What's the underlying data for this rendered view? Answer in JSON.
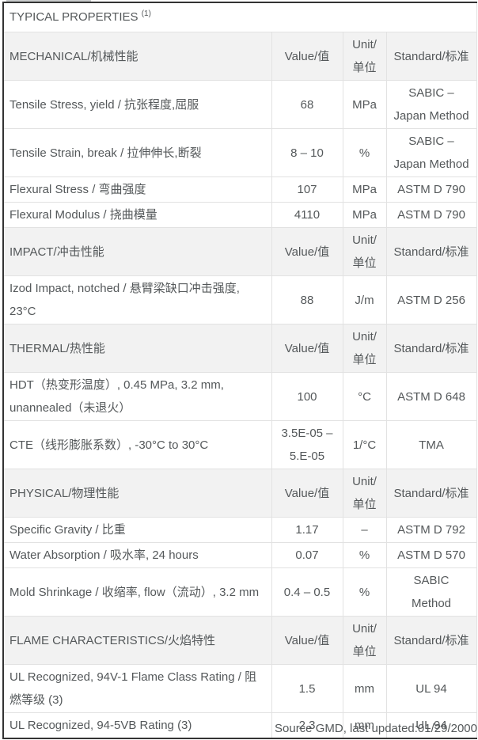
{
  "colors": {
    "text": "#54585a",
    "dark_border": "#333333",
    "grid_line": "#e2e2e2",
    "section_header_bg": "#f2f2f2",
    "top_strip": "#c9cbcc"
  },
  "table": {
    "title": "TYPICAL PROPERTIES",
    "title_superscript": "(1)",
    "columns": [
      "Value/值",
      "Unit/单位",
      "Standard/标准"
    ],
    "sections": [
      {
        "label": "MECHANICAL/机械性能",
        "rows": [
          {
            "property": "Tensile Stress, yield / 抗张程度,屈服",
            "value": "68",
            "unit": "MPa",
            "standard": "SABIC – Japan Method"
          },
          {
            "property": "Tensile Strain, break / 拉伸伸长,断裂",
            "value": "8 – 10",
            "unit": "%",
            "standard": "SABIC – Japan Method"
          },
          {
            "property": "Flexural Stress / 弯曲强度",
            "value": "107",
            "unit": "MPa",
            "standard": "ASTM D 790"
          },
          {
            "property": "Flexural Modulus / 挠曲模量",
            "value": "4110",
            "unit": "MPa",
            "standard": "ASTM D 790"
          }
        ]
      },
      {
        "label": "IMPACT/冲击性能",
        "rows": [
          {
            "property": "Izod Impact, notched / 悬臂梁缺口冲击强度, 23°C",
            "value": "88",
            "unit": "J/m",
            "standard": "ASTM D 256"
          }
        ]
      },
      {
        "label": "THERMAL/热性能",
        "rows": [
          {
            "property": "HDT（热变形温度）, 0.45 MPa, 3.2 mm, unannealed（未退火）",
            "value": "100",
            "unit": "°C",
            "standard": "ASTM D 648"
          },
          {
            "property": "CTE（线形膨胀系数）, -30°C to 30°C",
            "value": "3.5E-05 – 5.E-05",
            "unit": "1/°C",
            "standard": "TMA"
          }
        ]
      },
      {
        "label": "PHYSICAL/物理性能",
        "rows": [
          {
            "property": "Specific Gravity / 比重",
            "value": "1.17",
            "unit": "–",
            "standard": "ASTM D 792"
          },
          {
            "property": "Water Absorption / 吸水率, 24 hours",
            "value": "0.07",
            "unit": "%",
            "standard": "ASTM D 570"
          },
          {
            "property": "Mold Shrinkage / 收缩率, flow（流动）, 3.2 mm",
            "value": "0.4 – 0.5",
            "unit": "%",
            "standard": "SABIC Method"
          }
        ]
      },
      {
        "label": "FLAME CHARACTERISTICS/火焰特性",
        "rows": [
          {
            "property": "UL Recognized, 94V-1 Flame Class Rating / 阻燃等级 (3)",
            "value": "1.5",
            "unit": "mm",
            "standard": "UL 94"
          },
          {
            "property": "UL Recognized, 94-5VB Rating (3)",
            "value": "2.3",
            "unit": "mm",
            "standard": "UL 94"
          }
        ]
      }
    ]
  },
  "footer": {
    "source": "Source GMD, last updated:01/29/2000"
  }
}
